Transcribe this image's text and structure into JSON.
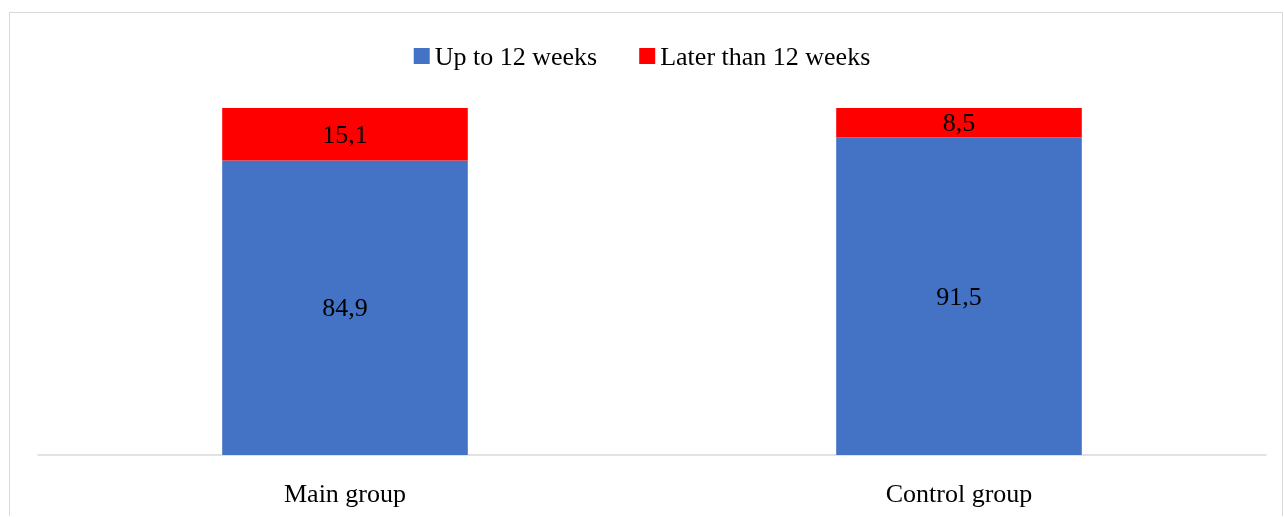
{
  "chart_data": {
    "type": "bar",
    "categories": [
      "Main group",
      "Control group"
    ],
    "series": [
      {
        "name": "Up to 12 weeks",
        "color": "#4472c4",
        "values": [
          84.9,
          91.5
        ],
        "value_labels": [
          "84,9",
          "91,5"
        ]
      },
      {
        "name": "Later than 12 weeks",
        "color": "#ff0000",
        "values": [
          15.1,
          8.5
        ],
        "value_labels": [
          "15,1",
          "8,5"
        ]
      }
    ],
    "stacked": true,
    "legend": "top",
    "tick_labels": "x"
  }
}
